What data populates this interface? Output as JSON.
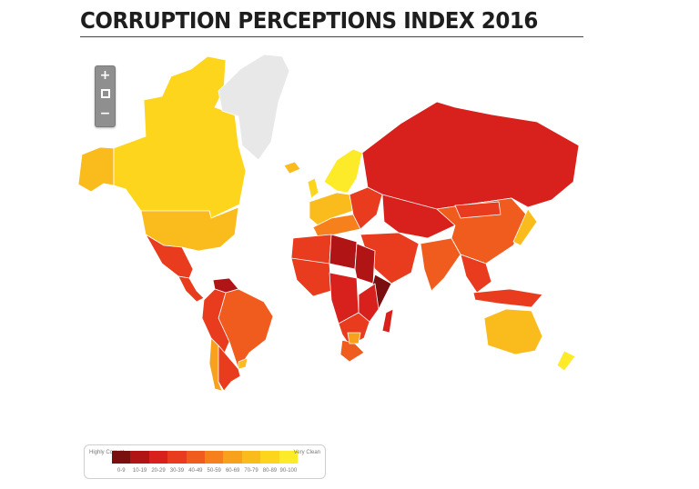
{
  "title": "CORRUPTION PERCEPTIONS INDEX 2016",
  "zoom_controls": {
    "zoom_in": "+",
    "zoom_out": "−"
  },
  "legend": {
    "low_label": "Highly Corrupt",
    "high_label": "Very Clean",
    "bins": [
      {
        "label": "0-9",
        "color": "#7a0f0f"
      },
      {
        "label": "10-19",
        "color": "#b01414"
      },
      {
        "label": "20-29",
        "color": "#d8201c"
      },
      {
        "label": "30-39",
        "color": "#e93b1e"
      },
      {
        "label": "40-49",
        "color": "#f05c1e"
      },
      {
        "label": "50-59",
        "color": "#f5801c"
      },
      {
        "label": "60-69",
        "color": "#f8a11c"
      },
      {
        "label": "70-79",
        "color": "#fabb1c"
      },
      {
        "label": "80-89",
        "color": "#fcd51c"
      },
      {
        "label": "90-100",
        "color": "#fdeb2a"
      }
    ]
  },
  "regions": [
    {
      "name": "Alaska",
      "score_band": "70-79"
    },
    {
      "name": "Canada",
      "score_band": "80-89"
    },
    {
      "name": "Greenland",
      "score_band": "no data"
    },
    {
      "name": "Iceland",
      "score_band": "70-79"
    },
    {
      "name": "United States",
      "score_band": "70-79"
    },
    {
      "name": "Mexico",
      "score_band": "30-39"
    },
    {
      "name": "Central America",
      "score_band": "30-39"
    },
    {
      "name": "Venezuela",
      "score_band": "10-19"
    },
    {
      "name": "Brazil",
      "score_band": "40-49"
    },
    {
      "name": "Andean Countries",
      "score_band": "30-39"
    },
    {
      "name": "Chile",
      "score_band": "60-69"
    },
    {
      "name": "Argentina",
      "score_band": "30-39"
    },
    {
      "name": "Uruguay",
      "score_band": "70-79"
    },
    {
      "name": "Scandinavia",
      "score_band": "90-100"
    },
    {
      "name": "United Kingdom",
      "score_band": "80-89"
    },
    {
      "name": "Western Europe",
      "score_band": "70-79"
    },
    {
      "name": "Southern Europe",
      "score_band": "50-59"
    },
    {
      "name": "Eastern Europe",
      "score_band": "30-39"
    },
    {
      "name": "Russia",
      "score_band": "20-29"
    },
    {
      "name": "Central Asia",
      "score_band": "20-29"
    },
    {
      "name": "Middle East",
      "score_band": "30-39"
    },
    {
      "name": "India",
      "score_band": "40-49"
    },
    {
      "name": "China",
      "score_band": "40-49"
    },
    {
      "name": "Mongolia",
      "score_band": "30-39"
    },
    {
      "name": "Japan",
      "score_band": "70-79"
    },
    {
      "name": "Southeast Asia",
      "score_band": "30-39"
    },
    {
      "name": "Indonesia",
      "score_band": "30-39"
    },
    {
      "name": "Australia",
      "score_band": "70-79"
    },
    {
      "name": "New Zealand",
      "score_band": "90-100"
    },
    {
      "name": "North Africa",
      "score_band": "30-39"
    },
    {
      "name": "Libya",
      "score_band": "10-19"
    },
    {
      "name": "Sudan",
      "score_band": "10-19"
    },
    {
      "name": "West Africa",
      "score_band": "30-39"
    },
    {
      "name": "Central Africa",
      "score_band": "20-29"
    },
    {
      "name": "Somalia",
      "score_band": "0-9"
    },
    {
      "name": "East Africa",
      "score_band": "20-29"
    },
    {
      "name": "Southern Africa",
      "score_band": "30-39"
    },
    {
      "name": "South Africa",
      "score_band": "40-49"
    },
    {
      "name": "Botswana",
      "score_band": "60-69"
    },
    {
      "name": "Madagascar",
      "score_band": "20-29"
    }
  ]
}
